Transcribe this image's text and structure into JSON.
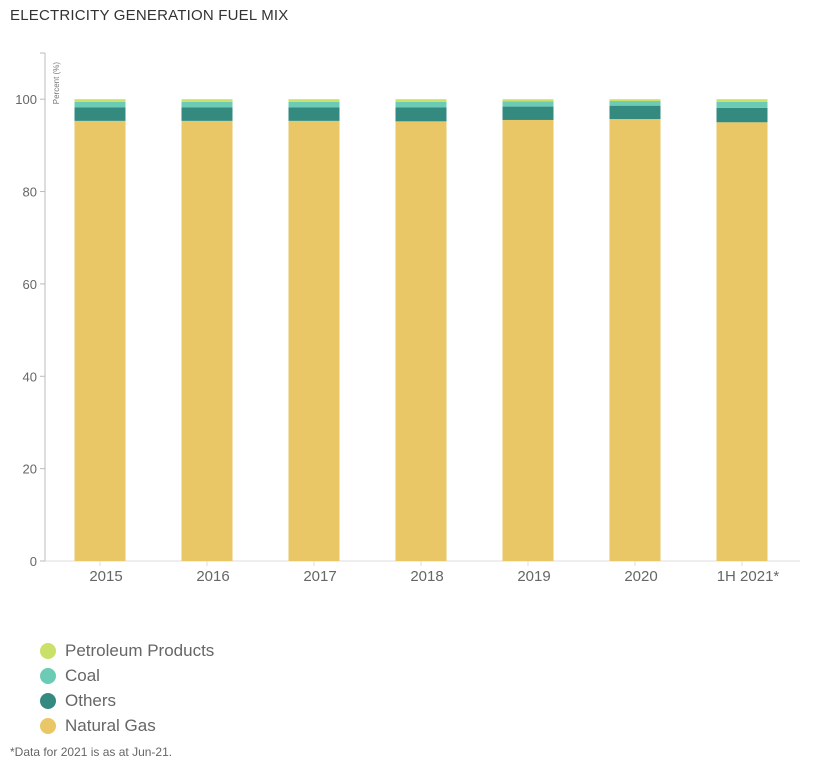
{
  "title": "ELECTRICITY GENERATION FUEL MIX",
  "footnote": "*Data for 2021 is as at Jun-21.",
  "chart_data": {
    "type": "bar",
    "stacked": true,
    "ylabel": "Percent (%)",
    "ylim": [
      0,
      110
    ],
    "yticks": [
      0,
      20,
      40,
      60,
      80,
      100
    ],
    "grid": false,
    "legend_position": "bottom-left",
    "categories": [
      "2015",
      "2016",
      "2017",
      "2018",
      "2019",
      "2020",
      "1H 2021*"
    ],
    "series": [
      {
        "name": "Natural Gas",
        "color": "#E9C766",
        "values": [
          95.3,
          95.3,
          95.3,
          95.2,
          95.5,
          95.7,
          95.0
        ]
      },
      {
        "name": "Others",
        "color": "#358A80",
        "values": [
          2.9,
          2.9,
          2.9,
          3.0,
          2.9,
          2.9,
          3.1
        ]
      },
      {
        "name": "Coal",
        "color": "#6CCBB5",
        "values": [
          1.2,
          1.2,
          1.2,
          1.2,
          1.1,
          1.0,
          1.3
        ]
      },
      {
        "name": "Petroleum Products",
        "color": "#C9E069",
        "values": [
          0.6,
          0.6,
          0.6,
          0.6,
          0.5,
          0.4,
          0.6
        ]
      }
    ]
  }
}
